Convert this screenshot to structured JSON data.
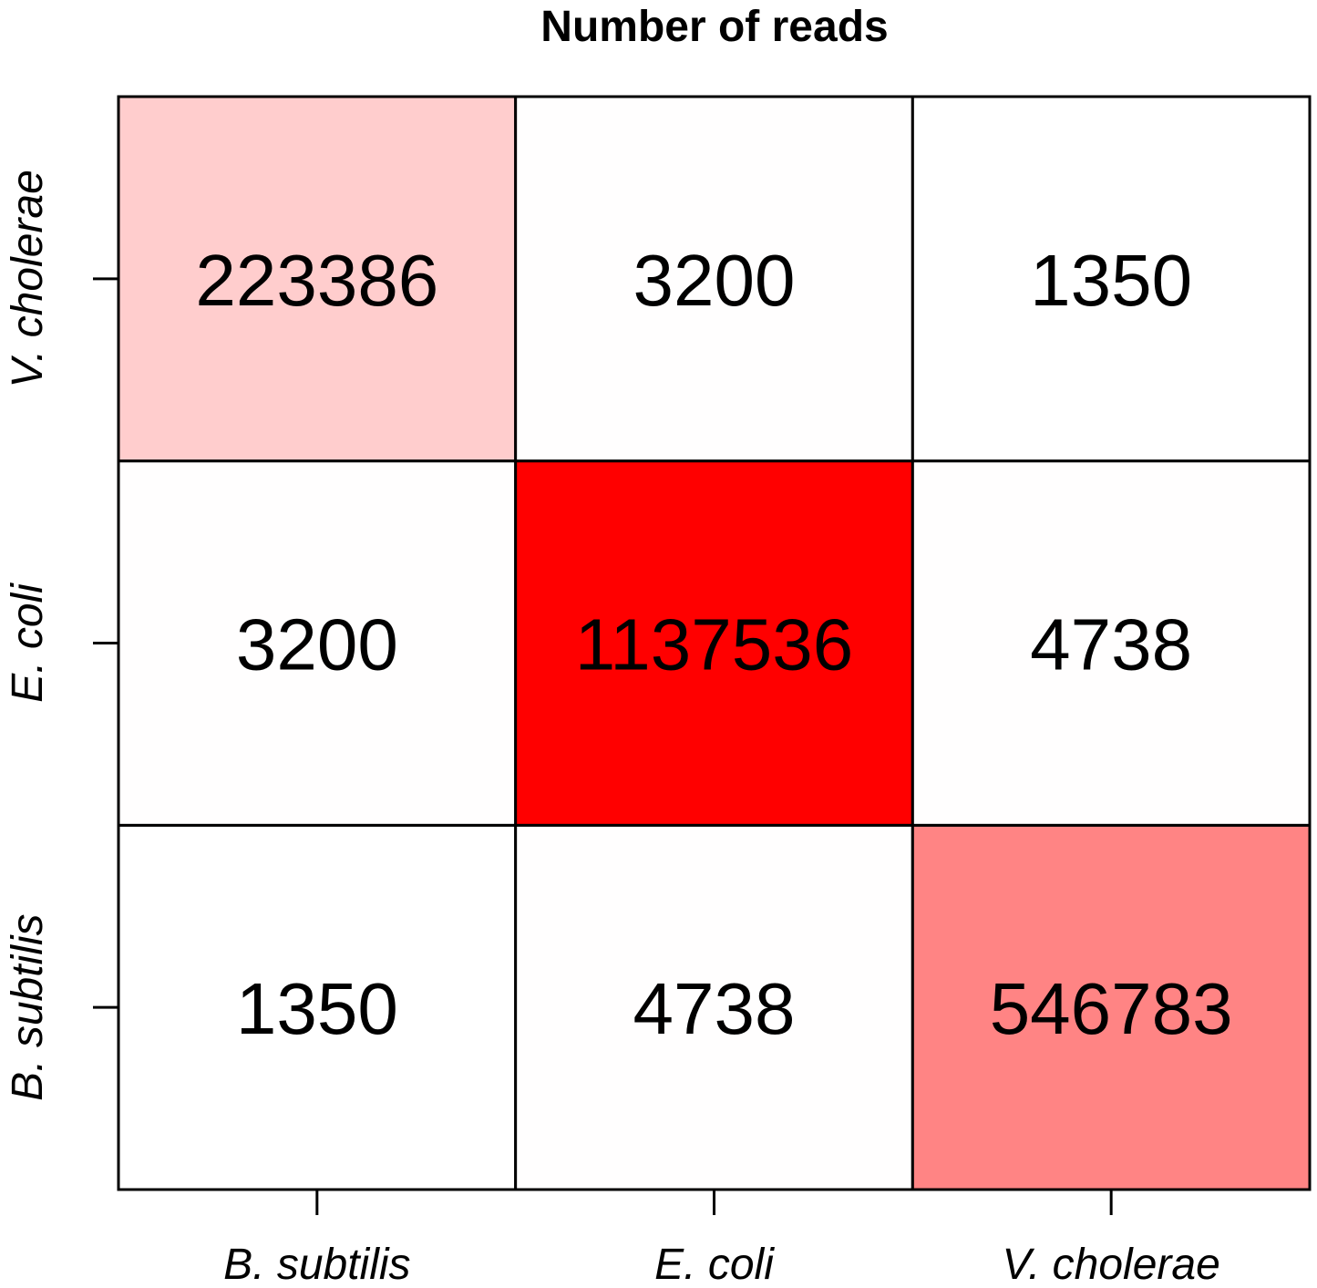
{
  "chart_data": {
    "type": "heatmap",
    "title": "Number of reads",
    "x_categories": [
      "B. subtilis",
      "E. coli",
      "V. cholerae"
    ],
    "y_categories": [
      "B. subtilis",
      "E. coli",
      "V. cholerae"
    ],
    "y_order": "bottom-to-top",
    "values": [
      [
        1350,
        4738,
        546783
      ],
      [
        3200,
        1137536,
        4738
      ],
      [
        223386,
        3200,
        1350
      ]
    ],
    "value_rows_order": "bottom-to-top",
    "labels": [
      [
        "1350",
        "4738",
        "546783"
      ],
      [
        "3200",
        "1137536",
        "4738"
      ],
      [
        "223386",
        "3200",
        "1350"
      ]
    ],
    "colors": {
      "low": "#ffffff",
      "high": "#ff0000",
      "grid": "#000000"
    },
    "grid": true
  }
}
